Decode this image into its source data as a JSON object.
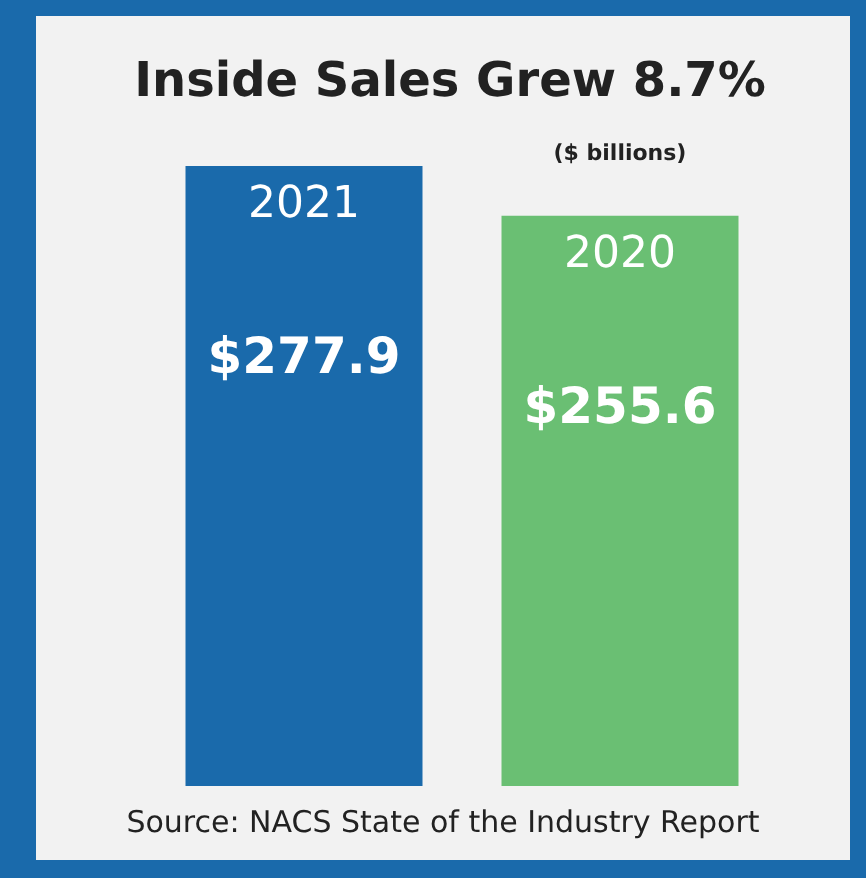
{
  "chart_data": {
    "type": "bar",
    "title": "Inside Sales Grew 8.7%",
    "subtitle": "($ billions)",
    "categories": [
      "2021",
      "2020"
    ],
    "values": [
      277.9,
      255.6
    ],
    "colors": [
      "#1a6aab",
      "#6abf73"
    ],
    "value_labels": [
      "$277.9",
      "$255.6"
    ],
    "annotations": [
      "Source: NACS State of the Industry Report"
    ]
  }
}
